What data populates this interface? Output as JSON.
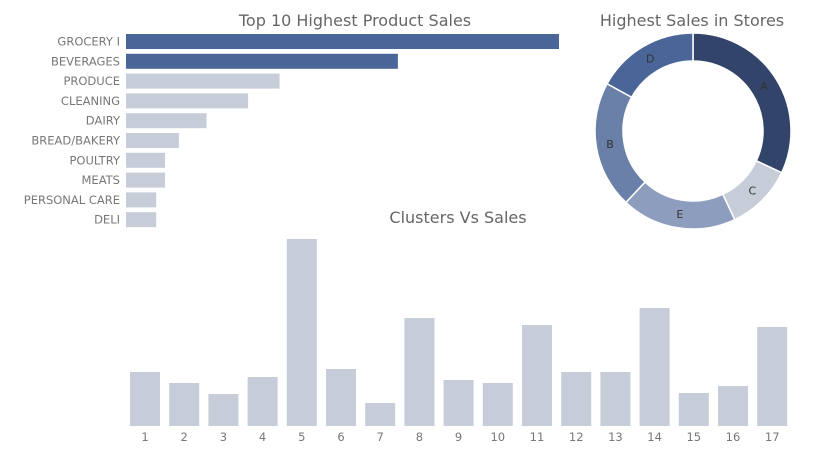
{
  "colors": {
    "highlight": "#4a6699",
    "muted": "#c6ccd8",
    "title_text": "#666666",
    "label_text": "#777777",
    "pie_text": "#333333",
    "background": "#ffffff"
  },
  "chart_data": [
    {
      "type": "bar",
      "orientation": "horizontal",
      "title": "Top 10 Highest Product Sales",
      "categories": [
        "GROCERY I",
        "BEVERAGES",
        "PRODUCE",
        "CLEANING",
        "DAIRY",
        "BREAD/BAKERY",
        "POULTRY",
        "MEATS",
        "PERSONAL CARE",
        "DELI"
      ],
      "values": [
        344,
        216,
        122,
        97,
        64,
        42,
        31,
        31,
        24,
        24
      ],
      "highlighted": [
        "GROCERY I",
        "BEVERAGES"
      ],
      "xlim": [
        0,
        344
      ],
      "grid": false,
      "xlabel": "",
      "ylabel": ""
    },
    {
      "type": "pie",
      "variant": "donut",
      "title": "Highest Sales in Stores",
      "labels": [
        "A",
        "C",
        "E",
        "B",
        "D"
      ],
      "values": [
        32,
        11,
        19,
        21,
        17
      ],
      "colors": [
        "#33446a",
        "#c6ccd8",
        "#8d9dbd",
        "#6a80a8",
        "#4a6699"
      ],
      "legend": "none"
    },
    {
      "type": "bar",
      "title": "Clusters Vs Sales",
      "categories": [
        "1",
        "2",
        "3",
        "4",
        "5",
        "6",
        "7",
        "8",
        "9",
        "10",
        "11",
        "12",
        "13",
        "14",
        "15",
        "16",
        "17"
      ],
      "values": [
        54,
        43,
        32,
        49,
        187,
        57,
        23,
        108,
        46,
        43,
        101,
        54,
        54,
        118,
        33,
        40,
        99
      ],
      "ylim": [
        0,
        187
      ],
      "grid": false,
      "xlabel": "",
      "ylabel": ""
    }
  ]
}
